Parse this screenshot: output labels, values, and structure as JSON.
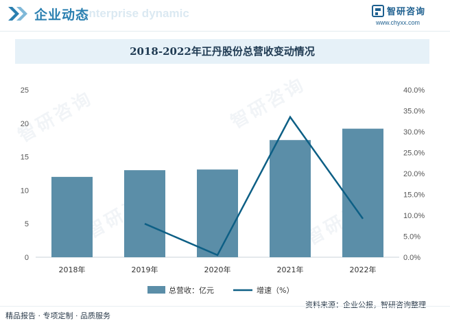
{
  "header": {
    "title": "企业动态",
    "subtitle": "Enterprise dynamic",
    "brand_name": "智研咨询",
    "brand_url": "www.chyxx.com"
  },
  "watermark_text": "智研咨询",
  "chart_data": {
    "type": "bar",
    "title": "2018-2022年正丹股份总营收变动情况",
    "categories": [
      "2018年",
      "2019年",
      "2020年",
      "2021年",
      "2022年"
    ],
    "series": [
      {
        "name": "总营收：亿元",
        "type": "bar",
        "axis": "left",
        "values": [
          12.0,
          13.0,
          13.1,
          17.5,
          19.2
        ]
      },
      {
        "name": "增速（%）",
        "type": "line",
        "axis": "right",
        "values": [
          null,
          8.0,
          0.5,
          33.5,
          9.2
        ]
      }
    ],
    "y_left": {
      "min": 0,
      "max": 25,
      "ticks": [
        "0",
        "5",
        "10",
        "15",
        "20",
        "25"
      ]
    },
    "y_right": {
      "min": 0,
      "max": 40,
      "ticks": [
        "0.0%",
        "5.0%",
        "10.0%",
        "15.0%",
        "20.0%",
        "25.0%",
        "30.0%",
        "35.0%",
        "40.0%"
      ]
    },
    "colors": {
      "bar": "#5b8ea8",
      "line": "#0d5f85"
    },
    "legend_position": "bottom",
    "grid": false
  },
  "footer": {
    "left": "精品报告 · 专项定制 · 品质服务",
    "source": "资料来源：企业公报，智研咨询整理"
  }
}
